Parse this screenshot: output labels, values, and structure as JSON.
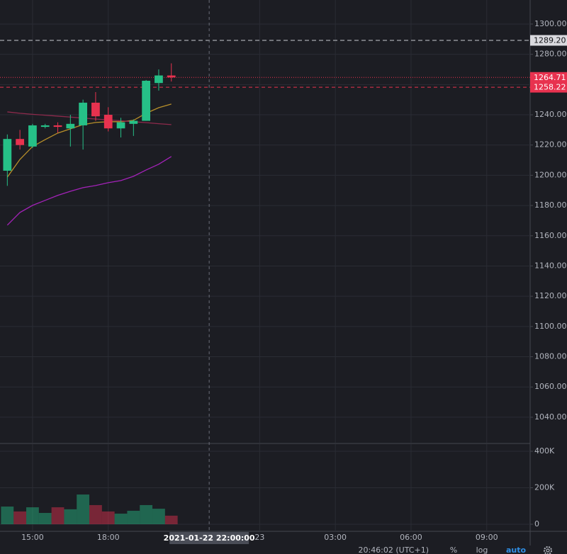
{
  "chart_data": {
    "type": "candlestick",
    "x": [
      14,
      14.5,
      15,
      15.5,
      16,
      16.5,
      17,
      17.5,
      18,
      18.5,
      19,
      19.5,
      20,
      20.5
    ],
    "xlim": [
      13.71,
      34.72
    ],
    "xticks": [
      {
        "value": 15,
        "label": "15:00"
      },
      {
        "value": 18,
        "label": "18:00"
      },
      {
        "value": 24,
        "label": "23"
      },
      {
        "value": 27,
        "label": "03:00"
      },
      {
        "value": 30,
        "label": "06:00"
      },
      {
        "value": 33,
        "label": "09:00"
      }
    ],
    "crosshair": {
      "value": 22,
      "label": "2021-01-22 22:00:00"
    },
    "open": [
      1203,
      1224,
      1219,
      1232,
      1233,
      1231,
      1233,
      1248,
      1240,
      1231,
      1234,
      1236,
      1261,
      1266
    ],
    "high": [
      1227,
      1230,
      1234,
      1234,
      1235,
      1240,
      1250,
      1255,
      1245,
      1238,
      1237,
      1263,
      1270,
      1274
    ],
    "low": [
      1193,
      1217,
      1218,
      1231,
      1228,
      1219,
      1217,
      1236,
      1229,
      1225,
      1226,
      1236,
      1256,
      1262
    ],
    "close": [
      1224,
      1220,
      1233,
      1233,
      1232,
      1234,
      1248,
      1239,
      1231,
      1235,
      1236,
      1262.5,
      1266,
      1264.71
    ],
    "up_color": "#26c087",
    "down_color": "#e8324f",
    "ylim": [
      1023.1,
      1315.9
    ],
    "yticks": [
      {
        "value": 1040,
        "label": "1040.00"
      },
      {
        "value": 1060,
        "label": "1060.00"
      },
      {
        "value": 1080,
        "label": "1080.00"
      },
      {
        "value": 1100,
        "label": "1100.00"
      },
      {
        "value": 1120,
        "label": "1120.00"
      },
      {
        "value": 1140,
        "label": "1140.00"
      },
      {
        "value": 1160,
        "label": "1160.00"
      },
      {
        "value": 1180,
        "label": "1180.00"
      },
      {
        "value": 1200,
        "label": "1200.00"
      },
      {
        "value": 1220,
        "label": "1220.00"
      },
      {
        "value": 1240,
        "label": "1240.00"
      },
      {
        "value": 1260,
        "label": "1260.00"
      },
      {
        "value": 1280,
        "label": "1280.00"
      },
      {
        "value": 1300,
        "label": "1300.00"
      }
    ],
    "price_lines": [
      {
        "value": 1289.2,
        "label": "1289.20",
        "color": "#c8cad0",
        "badge": "#d9d9de",
        "text_color": "#131418",
        "dash": "6 4"
      },
      {
        "value": 1264.71,
        "label": "1264.71",
        "color": "#e8324f",
        "badge": "#e8324f",
        "text_color": "#ffffff",
        "dash": "1 2"
      },
      {
        "value": 1258.22,
        "label": "1258.22",
        "color": "#e8324f",
        "badge": "#e8324f",
        "text_color": "#ffffff",
        "dash": "5 4"
      }
    ],
    "lines": [
      {
        "color": "#b8902a",
        "values": [
          1198.8,
          1210.5,
          1219.0,
          1223.6,
          1227.9,
          1230.7,
          1233.5,
          1234.9,
          1235.4,
          1235.4,
          1236.3,
          1241.0,
          1244.7,
          1247.1
        ]
      },
      {
        "color": "#a322b8",
        "values": [
          1167.0,
          1175.4,
          1180.1,
          1183.4,
          1186.7,
          1189.4,
          1191.8,
          1193.2,
          1195.1,
          1196.5,
          1199.3,
          1203.5,
          1207.3,
          1212.4
        ]
      },
      {
        "color": "#8e2a4c",
        "values": [
          1241.9,
          1241.0,
          1240.3,
          1239.7,
          1239.1,
          1238.5,
          1237.8,
          1237.2,
          1236.6,
          1236.0,
          1235.4,
          1234.8,
          1234.1,
          1233.5
        ]
      }
    ],
    "volume": {
      "values": [
        97000,
        70000,
        93000,
        62000,
        93000,
        82000,
        163000,
        105000,
        70000,
        58000,
        74000,
        105000,
        85000,
        47000
      ],
      "ylim": [
        -38835,
        438835
      ],
      "yticks": [
        0,
        {
          "value": 200000,
          "label": "200K"
        },
        {
          "value": 400000,
          "label": "400K"
        }
      ]
    },
    "grid": true
  },
  "status_bar": {
    "clock": "20:46:02 (UTC+1)",
    "percent": "%",
    "log": "log",
    "auto": "auto"
  }
}
